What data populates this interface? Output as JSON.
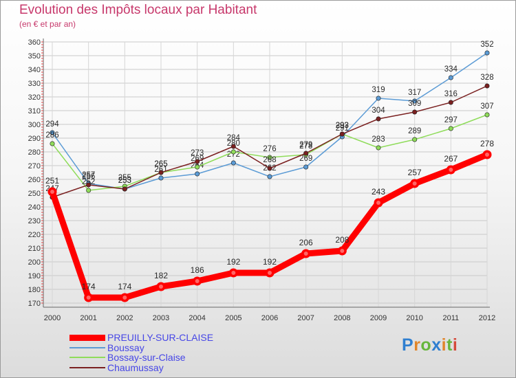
{
  "chart_data": {
    "type": "line",
    "title": "Evolution des Impôts locaux par Habitant",
    "subtitle": "(en € et par an)",
    "x": [
      "2000",
      "2001",
      "2002",
      "2003",
      "2004",
      "2005",
      "2006",
      "2007",
      "2008",
      "2009",
      "2010",
      "2011",
      "2012"
    ],
    "ylim": [
      170,
      360
    ],
    "yticks": [
      170,
      180,
      190,
      200,
      210,
      220,
      230,
      240,
      250,
      260,
      270,
      280,
      290,
      300,
      310,
      320,
      330,
      340,
      350,
      360
    ],
    "grid": true,
    "series": [
      {
        "name": "PREUILLY-SUR-CLAISE",
        "color": "#ff0000",
        "values": [
          251,
          174,
          174,
          182,
          186,
          192,
          192,
          206,
          208,
          243,
          257,
          267,
          278
        ]
      },
      {
        "name": "Boussay",
        "color": "#5b9bd5",
        "values": [
          294,
          257,
          253,
          261,
          264,
          272,
          262,
          269,
          291,
          319,
          317,
          334,
          352
        ]
      },
      {
        "name": "Bossay-sur-Claise",
        "color": "#8fdc5a",
        "values": [
          286,
          252,
          255,
          265,
          269,
          280,
          276,
          278,
          293,
          283,
          289,
          297,
          307
        ]
      },
      {
        "name": "Chaumussay",
        "color": "#7a2020",
        "values": [
          247,
          256,
          253,
          265,
          273,
          284,
          268,
          279,
          293,
          304,
          309,
          316,
          328
        ]
      }
    ]
  },
  "legend": {
    "items": [
      {
        "label": "PREUILLY-SUR-CLAISE"
      },
      {
        "label": "Boussay"
      },
      {
        "label": "Bossay-sur-Claise"
      },
      {
        "label": "Chaumussay"
      }
    ]
  },
  "logo": {
    "text": "Proxiti"
  }
}
